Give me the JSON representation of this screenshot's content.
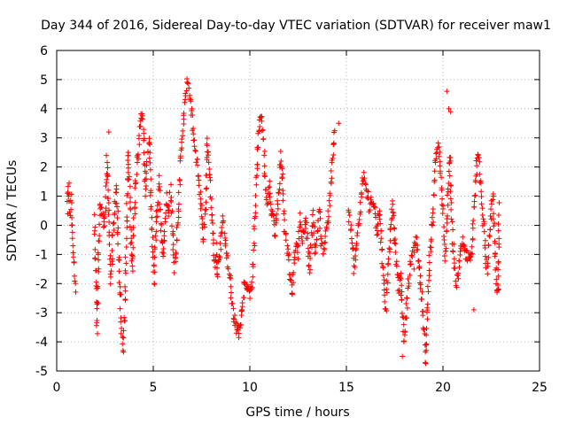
{
  "chart_data": {
    "type": "scatter",
    "title": "Day 344 of 2016, Sidereal Day-to-day VTEC variation (SDTVAR) for receiver maw1",
    "xlabel": "GPS time / hours",
    "ylabel": "SDTVAR / TECUs",
    "xlim": [
      0,
      25
    ],
    "ylim": [
      -5,
      6
    ],
    "xticks": [
      0,
      5,
      10,
      15,
      20,
      25
    ],
    "yticks": [
      -5,
      -4,
      -3,
      -2,
      -1,
      0,
      1,
      2,
      3,
      4,
      5,
      6
    ],
    "grid": true,
    "marker": "+",
    "series": [
      {
        "name": "maw1",
        "color": "#ff0000",
        "trace_points": [
          [
            0.55,
            0.5
          ],
          [
            0.6,
            1.4
          ],
          [
            0.65,
            0.9
          ],
          [
            0.7,
            0.3
          ],
          [
            0.75,
            0.9
          ],
          [
            0.8,
            0.0
          ],
          [
            0.85,
            -0.6
          ],
          [
            0.9,
            -1.2
          ],
          [
            1.0,
            -2.3
          ],
          [
            1.95,
            0.2
          ],
          [
            2.0,
            -1.2
          ],
          [
            2.05,
            -2.6
          ],
          [
            2.1,
            -3.5
          ],
          [
            2.15,
            -1.5
          ],
          [
            2.2,
            -0.2
          ],
          [
            2.25,
            0.8
          ],
          [
            2.5,
            0.0
          ],
          [
            2.55,
            1.2
          ],
          [
            2.6,
            2.3
          ],
          [
            2.65,
            1.5
          ],
          [
            2.7,
            0.2
          ],
          [
            2.75,
            -1.0
          ],
          [
            2.8,
            -2.0
          ],
          [
            2.9,
            -0.5
          ],
          [
            3.0,
            0.5
          ],
          [
            3.1,
            1.4
          ],
          [
            3.15,
            0.5
          ],
          [
            3.2,
            -1.0
          ],
          [
            3.3,
            -2.6
          ],
          [
            3.35,
            -3.8
          ],
          [
            3.45,
            -4.2
          ],
          [
            3.5,
            -3.5
          ],
          [
            3.55,
            -2.0
          ],
          [
            3.6,
            -0.5
          ],
          [
            3.65,
            1.0
          ],
          [
            3.7,
            2.6
          ],
          [
            3.75,
            1.8
          ],
          [
            3.8,
            0.8
          ],
          [
            3.85,
            -0.5
          ],
          [
            3.9,
            -1.6
          ],
          [
            3.95,
            -0.8
          ],
          [
            4.0,
            0.2
          ],
          [
            4.1,
            1.5
          ],
          [
            4.2,
            2.5
          ],
          [
            4.3,
            3.2
          ],
          [
            4.4,
            3.8
          ],
          [
            4.5,
            3.2
          ],
          [
            4.55,
            2.0
          ],
          [
            4.6,
            1.2
          ],
          [
            4.7,
            2.5
          ],
          [
            4.8,
            3.0
          ],
          [
            4.85,
            1.8
          ],
          [
            4.9,
            0.5
          ],
          [
            4.95,
            -0.5
          ],
          [
            5.0,
            -1.2
          ],
          [
            5.05,
            -2.0
          ],
          [
            5.1,
            -0.5
          ],
          [
            5.2,
            0.5
          ],
          [
            5.3,
            1.5
          ],
          [
            5.4,
            0.0
          ],
          [
            5.5,
            -1.0
          ],
          [
            5.6,
            0.0
          ],
          [
            5.7,
            1.0
          ],
          [
            5.8,
            0.5
          ],
          [
            5.9,
            1.2
          ],
          [
            6.0,
            0.0
          ],
          [
            6.1,
            -1.5
          ],
          [
            6.2,
            -0.8
          ],
          [
            6.3,
            0.5
          ],
          [
            6.4,
            2.0
          ],
          [
            6.5,
            3.0
          ],
          [
            6.6,
            4.0
          ],
          [
            6.7,
            4.5
          ],
          [
            6.8,
            5.0
          ],
          [
            6.9,
            4.5
          ],
          [
            7.0,
            3.8
          ],
          [
            7.1,
            3.0
          ],
          [
            7.2,
            2.5
          ],
          [
            7.3,
            2.0
          ],
          [
            7.4,
            1.2
          ],
          [
            7.5,
            0.5
          ],
          [
            7.6,
            -0.5
          ],
          [
            7.7,
            0.5
          ],
          [
            7.8,
            3.0
          ],
          [
            7.9,
            2.0
          ],
          [
            8.0,
            1.0
          ],
          [
            8.1,
            -0.5
          ],
          [
            8.2,
            -1.5
          ],
          [
            8.25,
            -0.8
          ],
          [
            8.3,
            -1.8
          ],
          [
            8.4,
            -1.2
          ],
          [
            8.5,
            -0.5
          ],
          [
            8.6,
            0.2
          ],
          [
            8.7,
            -0.3
          ],
          [
            8.8,
            -1.0
          ],
          [
            8.9,
            -1.5
          ],
          [
            9.0,
            -2.0
          ],
          [
            9.1,
            -2.8
          ],
          [
            9.2,
            -3.2
          ],
          [
            9.3,
            -3.5
          ],
          [
            9.4,
            -3.7
          ],
          [
            9.5,
            -3.4
          ],
          [
            9.6,
            -2.8
          ],
          [
            9.7,
            -2.2
          ],
          [
            9.8,
            -2.0
          ],
          [
            9.9,
            -2.2
          ],
          [
            10.0,
            -2.4
          ],
          [
            10.1,
            -2.0
          ],
          [
            10.2,
            -1.0
          ],
          [
            10.3,
            1.0
          ],
          [
            10.4,
            2.5
          ],
          [
            10.5,
            3.5
          ],
          [
            10.6,
            3.8
          ],
          [
            10.7,
            3.0
          ],
          [
            10.8,
            1.5
          ],
          [
            10.9,
            0.8
          ],
          [
            11.0,
            1.5
          ],
          [
            11.1,
            0.2
          ],
          [
            11.2,
            0.5
          ],
          [
            11.3,
            -0.3
          ],
          [
            11.4,
            0.5
          ],
          [
            11.5,
            1.0
          ],
          [
            11.6,
            2.5
          ],
          [
            11.7,
            1.5
          ],
          [
            11.8,
            0.0
          ],
          [
            11.9,
            -0.5
          ],
          [
            12.0,
            -1.0
          ],
          [
            12.1,
            -1.8
          ],
          [
            12.2,
            -2.4
          ],
          [
            12.3,
            -1.2
          ],
          [
            12.4,
            -0.5
          ],
          [
            12.5,
            -1.0
          ],
          [
            12.6,
            0.2
          ],
          [
            12.7,
            -0.6
          ],
          [
            12.8,
            -0.2
          ],
          [
            12.9,
            0.3
          ],
          [
            13.0,
            -0.8
          ],
          [
            13.1,
            -1.5
          ],
          [
            13.2,
            -0.5
          ],
          [
            13.3,
            0.3
          ],
          [
            13.4,
            -1.0
          ],
          [
            13.5,
            -0.2
          ],
          [
            13.6,
            0.5
          ],
          [
            13.7,
            -0.5
          ],
          [
            13.8,
            -1.0
          ],
          [
            13.9,
            -0.3
          ],
          [
            14.0,
            0.0
          ],
          [
            14.1,
            0.5
          ],
          [
            14.2,
            1.5
          ],
          [
            14.3,
            2.5
          ],
          [
            14.4,
            3.5
          ],
          [
            15.1,
            0.5
          ],
          [
            15.2,
            0.0
          ],
          [
            15.3,
            -0.5
          ],
          [
            15.4,
            -1.5
          ],
          [
            15.5,
            -0.8
          ],
          [
            15.8,
            1.2
          ],
          [
            15.9,
            1.6
          ],
          [
            16.0,
            1.3
          ],
          [
            16.1,
            1.0
          ],
          [
            16.2,
            0.5
          ],
          [
            16.3,
            1.0
          ],
          [
            16.4,
            0.8
          ],
          [
            16.5,
            0.3
          ],
          [
            16.6,
            -0.3
          ],
          [
            16.7,
            0.5
          ],
          [
            16.8,
            -0.5
          ],
          [
            16.9,
            -1.5
          ],
          [
            17.0,
            -2.5
          ],
          [
            17.05,
            -3.0
          ],
          [
            17.1,
            -2.0
          ],
          [
            17.2,
            -1.0
          ],
          [
            17.3,
            0.0
          ],
          [
            17.4,
            0.8
          ],
          [
            17.5,
            -0.5
          ],
          [
            17.6,
            -1.5
          ],
          [
            17.7,
            -2.2
          ],
          [
            17.8,
            -1.5
          ],
          [
            17.9,
            -3.0
          ],
          [
            18.0,
            -4.0
          ],
          [
            18.1,
            -3.0
          ],
          [
            18.2,
            -2.0
          ],
          [
            18.4,
            -1.0
          ],
          [
            18.6,
            -0.5
          ],
          [
            18.8,
            -1.5
          ],
          [
            18.9,
            -2.5
          ],
          [
            19.0,
            -3.5
          ],
          [
            19.1,
            -4.7
          ],
          [
            19.3,
            -1.0
          ],
          [
            19.4,
            -0.5
          ],
          [
            19.5,
            0.5
          ],
          [
            19.6,
            2.0
          ],
          [
            19.7,
            2.8
          ],
          [
            19.8,
            2.5
          ],
          [
            19.9,
            1.5
          ],
          [
            20.0,
            0.5
          ],
          [
            20.05,
            -0.5
          ],
          [
            20.1,
            -1.2
          ],
          [
            20.2,
            0.0
          ],
          [
            20.3,
            1.5
          ],
          [
            20.35,
            2.5
          ],
          [
            20.4,
            1.0
          ],
          [
            20.5,
            -0.5
          ],
          [
            20.6,
            -1.5
          ],
          [
            20.7,
            -2.0
          ],
          [
            20.8,
            -1.5
          ],
          [
            21.0,
            -0.5
          ],
          [
            21.2,
            -1.0
          ],
          [
            21.5,
            -1.0
          ],
          [
            21.6,
            0.5
          ],
          [
            21.7,
            1.5
          ],
          [
            21.8,
            2.5
          ],
          [
            21.9,
            2.0
          ],
          [
            22.0,
            1.0
          ],
          [
            22.1,
            0.0
          ],
          [
            22.2,
            -1.0
          ],
          [
            22.3,
            -1.5
          ],
          [
            22.4,
            -0.5
          ],
          [
            22.5,
            0.5
          ],
          [
            22.6,
            1.0
          ],
          [
            22.7,
            -1.0
          ],
          [
            22.8,
            -2.0
          ],
          [
            22.85,
            -2.4
          ],
          [
            22.9,
            0.8
          ]
        ],
        "isolated_points": [
          [
            20.2,
            4.6
          ],
          [
            20.3,
            4.0
          ],
          [
            20.4,
            3.9
          ],
          [
            18.5,
            -1.5
          ],
          [
            21.6,
            -2.9
          ],
          [
            22.8,
            -2.3
          ],
          [
            14.6,
            3.5
          ],
          [
            2.7,
            3.2
          ],
          [
            17.9,
            -4.5
          ],
          [
            9.3,
            -3.7
          ]
        ]
      }
    ]
  }
}
